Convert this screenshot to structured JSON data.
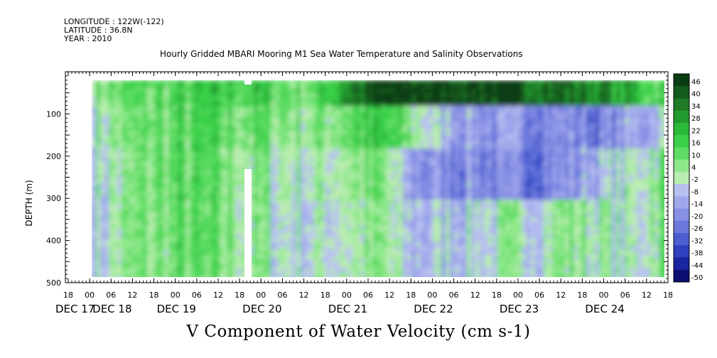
{
  "header": {
    "longitude": "LONGITUDE : 122W(-122)",
    "latitude": "LATITUDE : 36.8N",
    "year": "YEAR : 2010"
  },
  "chart_data": {
    "type": "heatmap",
    "title": "Hourly Gridded MBARI Mooring M1 Sea Water Temperature and Salinity Observations",
    "xlabel": "V Component of Water Velocity (cm s-1)",
    "ylabel": "DEPTH (m)",
    "ylim": [
      500,
      0
    ],
    "y_ticks": [
      100,
      200,
      300,
      400,
      500
    ],
    "x_hour_ticks": [
      "18",
      "00",
      "06",
      "12",
      "18",
      "00",
      "06",
      "12",
      "18",
      "00",
      "06",
      "12",
      "18",
      "00",
      "06",
      "12",
      "18",
      "00",
      "06",
      "12",
      "18",
      "00",
      "06",
      "12",
      "18",
      "00",
      "06",
      "12",
      "18"
    ],
    "x_date_labels": [
      "DEC 17",
      "DEC 18",
      "DEC 19",
      "DEC 20",
      "DEC 21",
      "DEC 22",
      "DEC 23",
      "DEC 24"
    ],
    "colorbar": {
      "labels": [
        "46",
        "40",
        "34",
        "28",
        "22",
        "16",
        "10",
        "4",
        "-2",
        "-8",
        "-14",
        "-20",
        "-26",
        "-32",
        "-38",
        "-44",
        "-50"
      ],
      "colors": [
        "#0a3d14",
        "#145a1c",
        "#1e7a26",
        "#239a2e",
        "#2cb83a",
        "#3bd04a",
        "#5cdc62",
        "#8ee88a",
        "#b8ecb0",
        "#b8c0f0",
        "#a0a8ec",
        "#8890e4",
        "#6c78dc",
        "#4c5ed0",
        "#2f3fbe",
        "#1a25a0",
        "#0a0f70"
      ]
    },
    "panels": [
      {
        "start": 20,
        "end": 130,
        "depth_start": 20,
        "depth_end": 480
      }
    ],
    "layers": [
      {
        "name": "surface",
        "depth_range": [
          20,
          80
        ],
        "values": [
          5,
          8,
          10,
          12,
          14,
          15,
          10,
          8,
          30,
          40,
          42,
          44,
          44,
          42,
          38,
          35,
          30,
          20,
          10
        ]
      },
      {
        "name": "upper",
        "depth_range": [
          80,
          180
        ],
        "values": [
          0,
          5,
          8,
          10,
          10,
          8,
          5,
          3,
          10,
          15,
          5,
          -10,
          -15,
          -20,
          -18,
          -20,
          -25,
          -15,
          -5
        ]
      },
      {
        "name": "mid",
        "depth_range": [
          180,
          300
        ],
        "values": [
          -5,
          0,
          8,
          10,
          6,
          3,
          0,
          -2,
          3,
          5,
          -15,
          -20,
          -18,
          -25,
          -22,
          -18,
          -10,
          -5,
          10
        ]
      },
      {
        "name": "deep",
        "depth_range": [
          300,
          480
        ],
        "values": [
          -8,
          2,
          6,
          8,
          5,
          2,
          -3,
          -5,
          0,
          2,
          -10,
          -8,
          -5,
          -3,
          -2,
          5,
          0,
          -5,
          8
        ]
      }
    ]
  }
}
